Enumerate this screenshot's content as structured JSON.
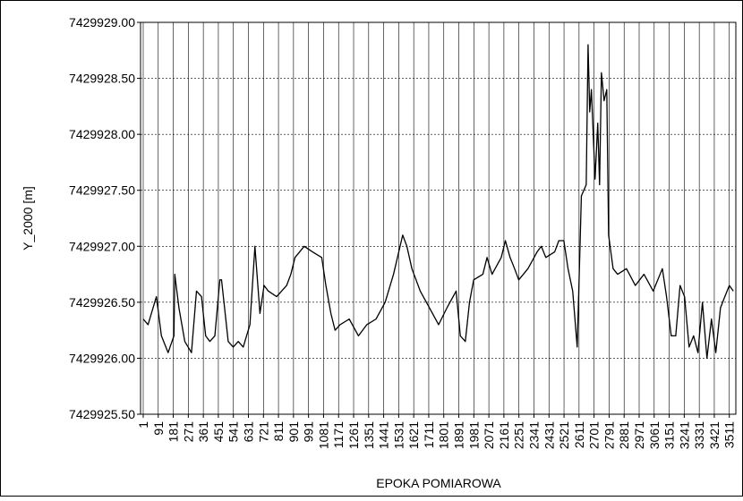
{
  "chart_data": {
    "type": "line",
    "x_label": "EPOKA POMIAROWA",
    "y_label": "Y_2000 [m]",
    "x": [
      1,
      30,
      60,
      80,
      110,
      150,
      185,
      190,
      215,
      250,
      290,
      320,
      350,
      375,
      400,
      430,
      460,
      470,
      510,
      540,
      570,
      600,
      640,
      670,
      700,
      725,
      750,
      800,
      860,
      885,
      910,
      965,
      1015,
      1070,
      1095,
      1125,
      1150,
      1180,
      1235,
      1290,
      1340,
      1395,
      1450,
      1500,
      1555,
      1580,
      1610,
      1660,
      1715,
      1770,
      1820,
      1875,
      1900,
      1930,
      1955,
      1980,
      2035,
      2060,
      2090,
      2145,
      2170,
      2198,
      2225,
      2250,
      2305,
      2360,
      2385,
      2412,
      2465,
      2490,
      2520,
      2545,
      2573,
      2600,
      2615,
      2625,
      2654,
      2665,
      2675,
      2685,
      2707,
      2723,
      2734,
      2745,
      2761,
      2777,
      2788,
      2815,
      2842,
      2895,
      2948,
      3000,
      3055,
      3110,
      3135,
      3163,
      3190,
      3216,
      3243,
      3270,
      3297,
      3323,
      3350,
      3377,
      3404,
      3430,
      3458,
      3484,
      3511,
      3535
    ],
    "values": [
      7429926.35,
      7429926.3,
      7429926.45,
      7429926.55,
      7429926.2,
      7429926.05,
      7429926.2,
      7429926.75,
      7429926.45,
      7429926.15,
      7429926.05,
      7429926.6,
      7429926.55,
      7429926.2,
      7429926.15,
      7429926.2,
      7429926.7,
      7429926.7,
      7429926.15,
      7429926.1,
      7429926.15,
      7429926.1,
      7429926.3,
      7429927.0,
      7429926.4,
      7429926.65,
      7429926.6,
      7429926.55,
      7429926.65,
      7429926.75,
      7429926.9,
      7429927.0,
      7429926.95,
      7429926.9,
      7429926.65,
      7429926.4,
      7429926.25,
      7429926.3,
      7429926.35,
      7429926.2,
      7429926.3,
      7429926.35,
      7429926.5,
      7429926.75,
      7429927.1,
      7429927.0,
      7429926.8,
      7429926.6,
      7429926.45,
      7429926.3,
      7429926.45,
      7429926.6,
      7429926.2,
      7429926.15,
      7429926.5,
      7429926.7,
      7429926.75,
      7429926.9,
      7429926.75,
      7429926.9,
      7429927.05,
      7429926.9,
      7429926.8,
      7429926.7,
      7429926.8,
      7429926.95,
      7429927.0,
      7429926.9,
      7429926.95,
      7429927.05,
      7429927.05,
      7429926.8,
      7429926.6,
      7429926.1,
      7429926.9,
      7429927.45,
      7429927.55,
      7429928.8,
      7429928.2,
      7429928.4,
      7429927.6,
      7429928.1,
      7429927.55,
      7429928.55,
      7429928.3,
      7429928.4,
      7429927.1,
      7429926.8,
      7429926.75,
      7429926.8,
      7429926.65,
      7429926.75,
      7429926.6,
      7429926.8,
      7429926.55,
      7429926.2,
      7429926.2,
      7429926.65,
      7429926.55,
      7429926.1,
      7429926.2,
      7429926.05,
      7429926.5,
      7429926.0,
      7429926.35,
      7429926.05,
      7429926.45,
      7429926.55,
      7429926.65,
      7429926.6
    ],
    "color": "#000000",
    "xlim": [
      -15,
      3550
    ],
    "xticks": [
      1,
      91,
      181,
      271,
      361,
      451,
      541,
      631,
      721,
      811,
      901,
      991,
      1081,
      1171,
      1261,
      1351,
      1441,
      1531,
      1621,
      1711,
      1801,
      1891,
      1981,
      2071,
      2161,
      2251,
      2341,
      2431,
      2521,
      2611,
      2701,
      2791,
      2881,
      2971,
      3061,
      3151,
      3241,
      3331,
      3421,
      3511
    ],
    "ylim": [
      7429925.5,
      7429929.0
    ],
    "yticks": [
      {
        "value": 7429925.5,
        "label": "7429925.50"
      },
      {
        "value": 7429926.0,
        "label": "7429926.00"
      },
      {
        "value": 7429926.5,
        "label": "7429926.50"
      },
      {
        "value": 7429927.0,
        "label": "7429927.00"
      },
      {
        "value": 7429927.5,
        "label": "7429927.50"
      },
      {
        "value": 7429928.0,
        "label": "7429928.00"
      },
      {
        "value": 7429928.5,
        "label": "7429928.50"
      },
      {
        "value": 7429929.0,
        "label": "7429929.00"
      }
    ],
    "grid": true
  }
}
